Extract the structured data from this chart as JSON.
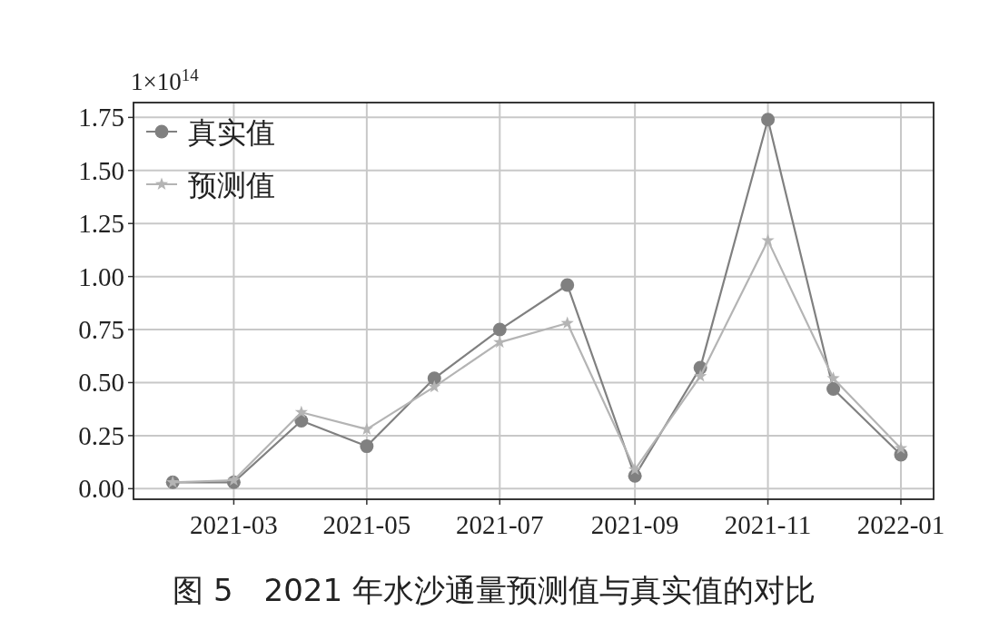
{
  "chart_data": {
    "type": "line",
    "title": "图 5　2021 年水沙通量预测值与真实值的对比",
    "ylabel": "1×10$^{14}$",
    "x": [
      "2021-02",
      "2021-03",
      "2021-04",
      "2021-05",
      "2021-06",
      "2021-07",
      "2021-08",
      "2021-09",
      "2021-10",
      "2021-11",
      "2021-12",
      "2022-01"
    ],
    "series": [
      {
        "name": "真实值",
        "color": "#808080",
        "marker": "circle",
        "values": [
          0.03,
          0.03,
          0.32,
          0.2,
          0.52,
          0.75,
          0.96,
          0.06,
          0.57,
          1.74,
          0.47,
          0.16
        ]
      },
      {
        "name": "预测值",
        "color": "#b4b4b4",
        "marker": "star",
        "values": [
          0.03,
          0.04,
          0.36,
          0.28,
          0.48,
          0.69,
          0.78,
          0.09,
          0.53,
          1.17,
          0.52,
          0.19
        ]
      }
    ],
    "xlim": [
      "2021-01-14",
      "2022-01-16"
    ],
    "xticks": [
      "2021-03",
      "2021-05",
      "2021-07",
      "2021-09",
      "2021-11",
      "2022-01"
    ],
    "ylim": [
      -0.05,
      1.82
    ],
    "yticks": [
      {
        "value": 0,
        "label": "0.00"
      },
      {
        "value": 0.25,
        "label": "0.25"
      },
      {
        "value": 0.5,
        "label": "0.50"
      },
      {
        "value": 0.75,
        "label": "0.75"
      },
      {
        "value": 1,
        "label": "1.00"
      },
      {
        "value": 1.25,
        "label": "1.25"
      },
      {
        "value": 1.5,
        "label": "1.50"
      },
      {
        "value": 1.75,
        "label": "1.75"
      }
    ],
    "grid": true,
    "legend": "top left",
    "line_style": "solid"
  }
}
